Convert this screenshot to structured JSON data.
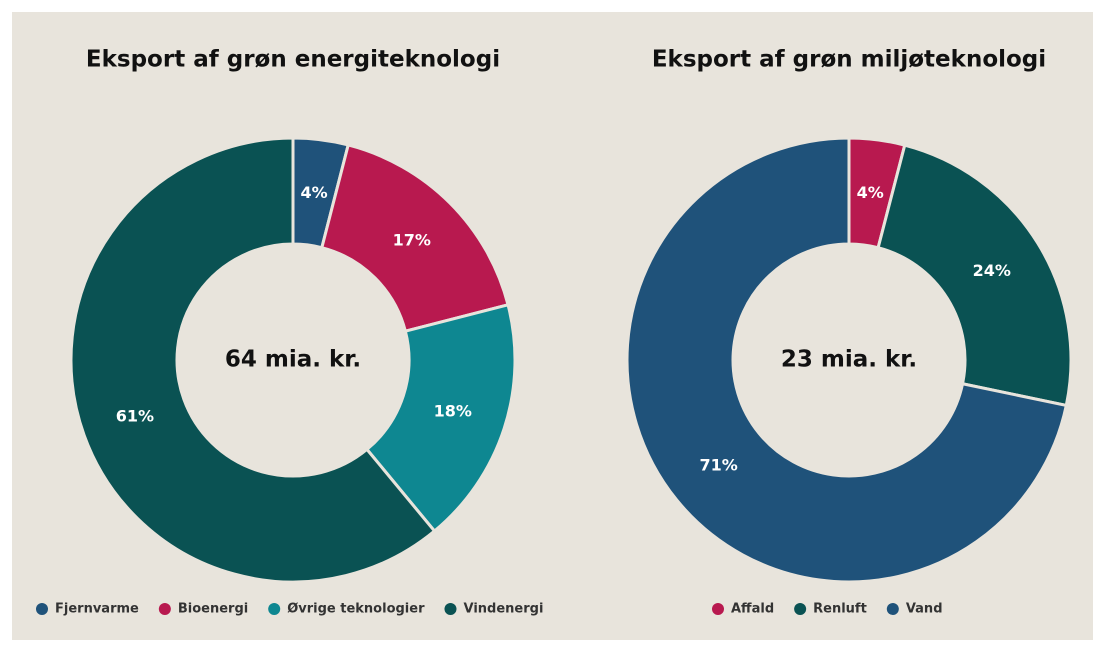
{
  "chart_data": [
    {
      "type": "donut",
      "title": "Eksport af grøn energiteknologi",
      "center_label": "64 mia. kr.",
      "categories": [
        "Fjernvarme",
        "Bioenergi",
        "Øvrige teknologier",
        "Vindenergi"
      ],
      "values": [
        4,
        17,
        18,
        61
      ],
      "value_labels": [
        "4%",
        "17%",
        "18%",
        "61%"
      ],
      "colors": [
        "#1f527a",
        "#b8194f",
        "#0e8791",
        "#0a5253"
      ]
    },
    {
      "type": "donut",
      "title": "Eksport af grøn miljøteknologi",
      "center_label": "23 mia. kr.",
      "categories": [
        "Affald",
        "Renluft",
        "Vand"
      ],
      "values": [
        4,
        24,
        71
      ],
      "value_labels": [
        "4%",
        "24%",
        "71%"
      ],
      "colors": [
        "#b8194f",
        "#0a5253",
        "#1f527a"
      ]
    }
  ]
}
